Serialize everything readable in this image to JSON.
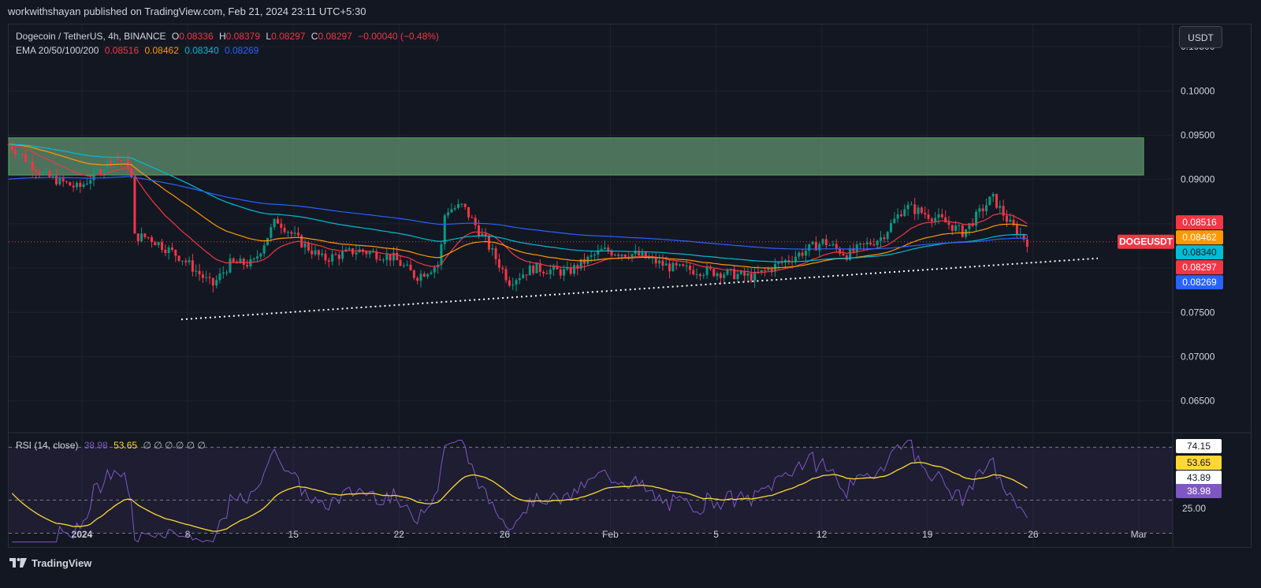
{
  "header": {
    "published_text": "workwithshayan published on TradingView.com, Feb 21, 2024 23:11 UTC+5:30"
  },
  "legend": {
    "symbol": "Dogecoin / TetherUS, 4h, BINANCE",
    "o_label": "O",
    "o_value": "0.08336",
    "h_label": "H",
    "h_value": "0.08379",
    "l_label": "L",
    "l_value": "0.08297",
    "c_label": "C",
    "c_value": "0.08297",
    "change": "−0.00040 (−0.48%)",
    "ema_label": "EMA 20/50/100/200",
    "ema20": "0.08516",
    "ema50": "0.08462",
    "ema100": "0.08340",
    "ema200": "0.08269"
  },
  "rsi_legend": {
    "label": "RSI (14, close)",
    "rsi": "38.98",
    "ma": "53.65",
    "empties": "∅ ∅ ∅ ∅ ∅ ∅"
  },
  "currency_button": "USDT",
  "footer": {
    "brand": "TradingView"
  },
  "chart_data": [
    {
      "type": "candlestick",
      "title": "Dogecoin / TetherUS, 4h, BINANCE",
      "y_ticks": [
        "0.10500",
        "0.10000",
        "0.09500",
        "0.09000",
        "0.08500",
        "0.08000",
        "0.07500",
        "0.07000",
        "0.06500"
      ],
      "y_range": [
        0.0615,
        0.1075
      ],
      "x_ticks": [
        "2024",
        "8",
        "15",
        "22",
        "26",
        "Feb",
        "5",
        "12",
        "19",
        "26",
        "Mar"
      ],
      "price_path": [
        [
          0,
          0.094
        ],
        [
          0.03,
          0.0905
        ],
        [
          0.06,
          0.089
        ],
        [
          0.09,
          0.0925
        ],
        [
          0.105,
          0.0915
        ],
        [
          0.107,
          0.0835
        ],
        [
          0.12,
          0.0835
        ],
        [
          0.15,
          0.081
        ],
        [
          0.175,
          0.078
        ],
        [
          0.19,
          0.0805
        ],
        [
          0.21,
          0.0805
        ],
        [
          0.23,
          0.0855
        ],
        [
          0.25,
          0.083
        ],
        [
          0.27,
          0.081
        ],
        [
          0.3,
          0.082
        ],
        [
          0.33,
          0.0812
        ],
        [
          0.35,
          0.079
        ],
        [
          0.37,
          0.0805
        ],
        [
          0.375,
          0.0865
        ],
        [
          0.39,
          0.087
        ],
        [
          0.41,
          0.083
        ],
        [
          0.43,
          0.0785
        ],
        [
          0.45,
          0.08
        ],
        [
          0.48,
          0.0795
        ],
        [
          0.51,
          0.082
        ],
        [
          0.54,
          0.0815
        ],
        [
          0.57,
          0.08
        ],
        [
          0.61,
          0.0795
        ],
        [
          0.64,
          0.079
        ],
        [
          0.67,
          0.081
        ],
        [
          0.7,
          0.083
        ],
        [
          0.72,
          0.0815
        ],
        [
          0.75,
          0.0835
        ],
        [
          0.77,
          0.087
        ],
        [
          0.8,
          0.0855
        ],
        [
          0.82,
          0.084
        ],
        [
          0.845,
          0.088
        ],
        [
          0.86,
          0.085
        ],
        [
          0.875,
          0.083
        ]
      ],
      "ema_series": [
        {
          "name": "EMA 20",
          "color": "#f23645",
          "last": "0.08516"
        },
        {
          "name": "EMA 50",
          "color": "#ff9800",
          "last": "0.08462"
        },
        {
          "name": "EMA 100",
          "color": "#00bcd4",
          "last": "0.08340"
        },
        {
          "name": "EMA 200",
          "color": "#2962ff",
          "last": "0.08269"
        }
      ],
      "supply_zone": {
        "from": 0.0905,
        "to": 0.0947,
        "color": "#5c8a6a"
      },
      "trendline": {
        "from_price": 0.0742,
        "to_price": 0.0811,
        "style": "dotted"
      },
      "current_price_label": {
        "text": "DOGEUSDT",
        "value": "0.08297",
        "color": "#f23645"
      },
      "price_labels": [
        {
          "value": "0.08516",
          "color": "#f23645"
        },
        {
          "value": "0.08462",
          "color": "#ff9800"
        },
        {
          "value": "0.08340",
          "color": "#00bcd4"
        },
        {
          "value": "0.08297",
          "color": "#f23645"
        },
        {
          "value": "0.08269",
          "color": "#2962ff"
        }
      ]
    },
    {
      "type": "line",
      "title": "RSI (14, close)",
      "y_range": [
        18,
        82
      ],
      "levels": [
        25,
        43.89,
        74.15
      ],
      "y_labels": [
        {
          "value": "74.15",
          "style": "white"
        },
        {
          "value": "53.65",
          "style": "yellow"
        },
        {
          "value": "43.89",
          "style": "white"
        },
        {
          "value": "38.98",
          "style": "purple"
        },
        {
          "value": "25.00",
          "style": "plain"
        }
      ],
      "series": [
        {
          "name": "RSI",
          "color": "#7e57c2"
        },
        {
          "name": "RSI MA",
          "color": "#fdd835"
        }
      ]
    }
  ],
  "colors": {
    "background": "#131722",
    "bull": "#089981",
    "bear": "#f23645",
    "grid": "#1e222d"
  }
}
